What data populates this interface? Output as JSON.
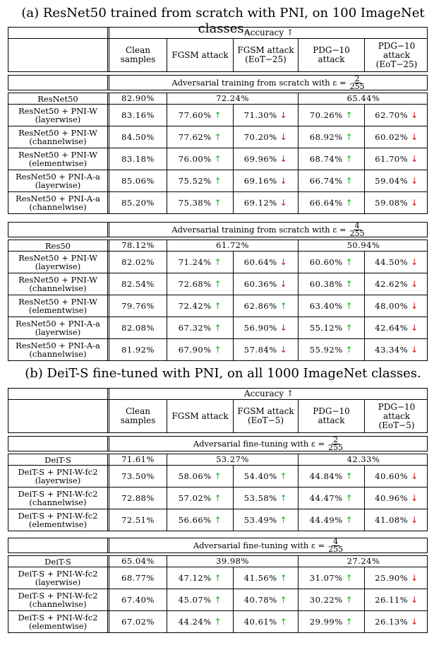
{
  "caption_a": "(a) ResNet50 trained from scratch with PNI, on 100 ImageNet classes.",
  "caption_b": "(b) DeiT-S fine-tuned with PNI, on all 1000 ImageNet classes.",
  "table_a": {
    "header": {
      "accuracy": "Accuracy ↑",
      "cols": [
        "Clean samples",
        "FGSM attack",
        "FGSM attack (EoT−25)",
        "PDG−10 attack",
        "PDG−10 attack (EoT−25)"
      ]
    },
    "sections": [
      {
        "title": "Adversarial training from scratch with ε =",
        "frac_num": "2",
        "frac_den": "255",
        "baseline": {
          "label": "ResNet50",
          "clean": "82.90%",
          "fgsm": "72.24%",
          "pgd": "65.44%"
        },
        "rows": [
          {
            "label1": "ResNet50 + PNI-W",
            "label2": "(layerwise)",
            "vals": [
              "83.16%",
              "77.60%",
              "71.30%",
              "70.26%",
              "62.70%"
            ],
            "arrows": [
              "",
              "up",
              "down",
              "up",
              "down"
            ]
          },
          {
            "label1": "ResNet50 + PNI-W",
            "label2": "(channelwise)",
            "vals": [
              "84.50%",
              "77.62%",
              "70.20%",
              "68.92%",
              "60.02%"
            ],
            "arrows": [
              "",
              "up",
              "down",
              "up",
              "down"
            ]
          },
          {
            "label1": "ResNet50 + PNI-W",
            "label2": "(elementwise)",
            "vals": [
              "83.18%",
              "76.00%",
              "69.96%",
              "68.74%",
              "61.70%"
            ],
            "arrows": [
              "",
              "up",
              "down",
              "up",
              "down"
            ]
          },
          {
            "label1": "ResNet50 + PNI-A-a",
            "label2": "(layerwise)",
            "vals": [
              "85.06%",
              "75.52%",
              "69.16%",
              "66.74%",
              "59.04%"
            ],
            "arrows": [
              "",
              "up",
              "down",
              "up",
              "down"
            ]
          },
          {
            "label1": "ResNet50 + PNI-A-a",
            "label2": "(channelwise)",
            "vals": [
              "85.20%",
              "75.38%",
              "69.12%",
              "66.64%",
              "59.08%"
            ],
            "arrows": [
              "",
              "up",
              "down",
              "up",
              "down"
            ]
          }
        ]
      },
      {
        "title": "Adversarial training from scratch with ε =",
        "frac_num": "4",
        "frac_den": "255",
        "baseline": {
          "label": "Res50",
          "clean": "78.12%",
          "fgsm": "61.72%",
          "pgd": "50.94%"
        },
        "rows": [
          {
            "label1": "ResNet50 + PNI-W",
            "label2": "(layerwise)",
            "vals": [
              "82.02%",
              "71.24%",
              "60.64%",
              "60.60%",
              "44.50%"
            ],
            "arrows": [
              "",
              "up",
              "down",
              "up",
              "down"
            ]
          },
          {
            "label1": "ResNet50 + PNI-W",
            "label2": "(channelwise)",
            "vals": [
              "82.54%",
              "72.68%",
              "60.36%",
              "60.38%",
              "42.62%"
            ],
            "arrows": [
              "",
              "up",
              "down",
              "up",
              "down"
            ]
          },
          {
            "label1": "ResNet50 + PNI-W",
            "label2": "(elementwise)",
            "vals": [
              "79.76%",
              "72.42%",
              "62.86%",
              "63.40%",
              "48.00%"
            ],
            "arrows": [
              "",
              "up",
              "up",
              "up",
              "down"
            ]
          },
          {
            "label1": "ResNet50 + PNI-A-a",
            "label2": "(layerwise)",
            "vals": [
              "82.08%",
              "67.32%",
              "56.90%",
              "55.12%",
              "42.64%"
            ],
            "arrows": [
              "",
              "up",
              "down",
              "up",
              "down"
            ]
          },
          {
            "label1": "ResNet50 + PNI-A-a",
            "label2": "(channelwise)",
            "vals": [
              "81.92%",
              "67.90%",
              "57.84%",
              "55.92%",
              "43.34%"
            ],
            "arrows": [
              "",
              "up",
              "down",
              "up",
              "down"
            ]
          }
        ]
      }
    ]
  },
  "table_b": {
    "header": {
      "accuracy": "Accuracy ↑",
      "cols": [
        "Clean samples",
        "FGSM attack",
        "FGSM attack (EoT−5)",
        "PDG−10 attack",
        "PDG−10 attack (EoT−5)"
      ]
    },
    "sections": [
      {
        "title": "Adversarial fine-tuning with ε =",
        "frac_num": "2",
        "frac_den": "255",
        "baseline": {
          "label": "DeiT-S",
          "clean": "71.61%",
          "fgsm": "53.27%",
          "pgd": "42.33%"
        },
        "rows": [
          {
            "label1": "DeiT-S + PNI-W-fc2",
            "label2": "(layerwise)",
            "vals": [
              "73.50%",
              "58.06%",
              "54.40%",
              "44.84%",
              "40.60%"
            ],
            "arrows": [
              "",
              "up",
              "up",
              "up",
              "down"
            ]
          },
          {
            "label1": "DeiT-S + PNI-W-fc2",
            "label2": "(channelwise)",
            "vals": [
              "72.88%",
              "57.02%",
              "53.58%",
              "44.47%",
              "40.96%"
            ],
            "arrows": [
              "",
              "up",
              "up",
              "up",
              "down"
            ]
          },
          {
            "label1": "DeiT-S + PNI-W-fc2",
            "label2": "(elementwise)",
            "vals": [
              "72.51%",
              "56.66%",
              "53.49%",
              "44.49%",
              "41.08%"
            ],
            "arrows": [
              "",
              "up",
              "up",
              "up",
              "down"
            ]
          }
        ]
      },
      {
        "title": "Adversarial fine-tuning with ε =",
        "frac_num": "4",
        "frac_den": "255",
        "baseline": {
          "label": "DeiT-S",
          "clean": "65.04%",
          "fgsm": "39.98%",
          "pgd": "27.24%"
        },
        "rows": [
          {
            "label1": "DeiT-S + PNI-W-fc2",
            "label2": "(layerwise)",
            "vals": [
              "68.77%",
              "47.12%",
              "41.56%",
              "31.07%",
              "25.90%"
            ],
            "arrows": [
              "",
              "up",
              "up",
              "up",
              "down"
            ]
          },
          {
            "label1": "DeiT-S + PNI-W-fc2",
            "label2": "(channelwise)",
            "vals": [
              "67.40%",
              "45.07%",
              "40.78%",
              "30.22%",
              "26.11%"
            ],
            "arrows": [
              "",
              "up",
              "up",
              "up",
              "down"
            ]
          },
          {
            "label1": "DeiT-S + PNI-W-fc2",
            "label2": "(elementwise)",
            "vals": [
              "67.02%",
              "44.24%",
              "40.61%",
              "29.99%",
              "26.13%"
            ],
            "arrows": [
              "",
              "up",
              "up",
              "up",
              "down"
            ]
          }
        ]
      }
    ]
  }
}
